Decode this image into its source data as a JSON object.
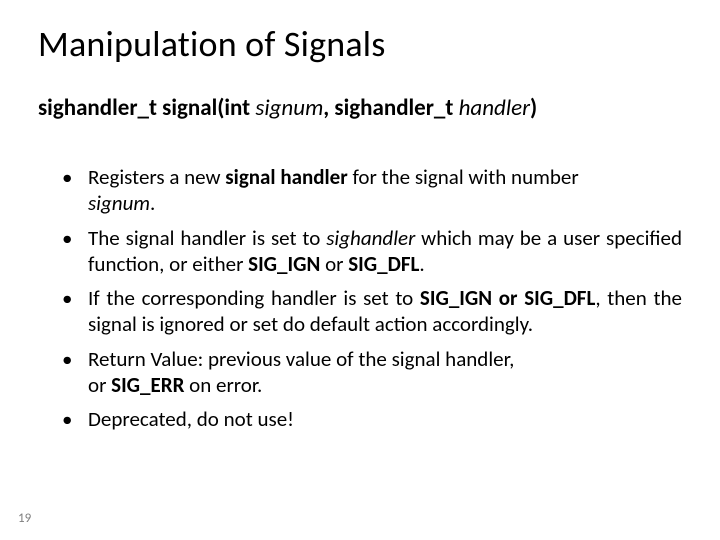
{
  "title": "Manipulation of Signals",
  "signature": {
    "ret_type": "sighandler_t",
    "fn": "signal",
    "lparen": "(",
    "arg1_kw": "int",
    "arg1_name": "signum",
    "comma": ", ",
    "arg2_type": "sighandler_t",
    "arg2_name": "handler",
    "rparen": ")"
  },
  "bullets": {
    "b1": {
      "t1": "Registers a new ",
      "bold1": "signal handler",
      "t2": " for the signal with number ",
      "ital1": "signum",
      "t3": "."
    },
    "b2": {
      "t1": "The signal handler is set to ",
      "ital1": "sighandler",
      "t2": " which may be a user specified function, or either ",
      "bold1": "SIG_IGN",
      "t3": " or ",
      "bold2": "SIG_DFL",
      "t4": "."
    },
    "b3": {
      "t1": "If the corresponding handler is set to ",
      "bold1": "SIG_IGN or SIG_DFL",
      "t2": ", then the signal is ignored or set do default action accordingly."
    },
    "b4": {
      "line1_a": "Return Value: previous value of the signal handler,",
      "line2_a": "or ",
      "line2_bold": "SIG_ERR",
      "line2_b": " on error."
    },
    "b5": {
      "t1": "Deprecated, do not use!"
    }
  },
  "page_number": "19",
  "colors": {
    "background": "#ffffff",
    "text": "#000000",
    "page_num": "#7f7f7f"
  },
  "fonts": {
    "title_size_pt": 36,
    "signature_size_pt": 23,
    "body_size_pt": 21,
    "pagenum_size_pt": 13,
    "family": "Calibri"
  }
}
